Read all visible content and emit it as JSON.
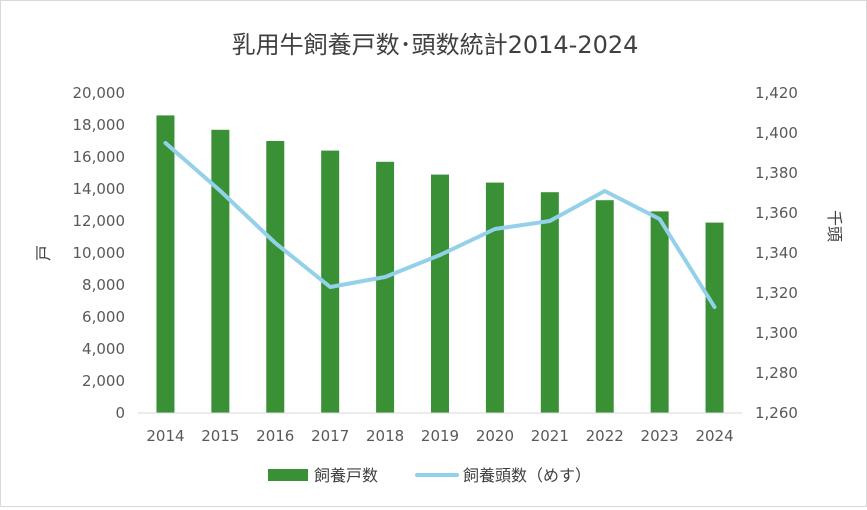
{
  "chart_data": {
    "type": "bar",
    "title": "乳用牛飼養戸数･頭数統計2014-2024",
    "categories": [
      "2014",
      "2015",
      "2016",
      "2017",
      "2018",
      "2019",
      "2020",
      "2021",
      "2022",
      "2023",
      "2024"
    ],
    "series": [
      {
        "name": "飼養戸数",
        "type": "bar",
        "axis": "left",
        "color": "#3a9034",
        "values": [
          18600,
          17700,
          17000,
          16400,
          15700,
          14900,
          14400,
          13800,
          13300,
          12600,
          11900
        ]
      },
      {
        "name": "飼養頭数（めす）",
        "type": "line",
        "axis": "right",
        "color": "#93d1ea",
        "values": [
          1395,
          1371,
          1345,
          1323,
          1328,
          1339,
          1352,
          1356,
          1371,
          1357,
          1313
        ]
      }
    ],
    "y_left": {
      "label": "戸",
      "ylim": [
        0,
        20000
      ],
      "ticks": [
        "0",
        "2,000",
        "4,000",
        "6,000",
        "8,000",
        "10,000",
        "12,000",
        "14,000",
        "16,000",
        "18,000",
        "20,000"
      ]
    },
    "y_right": {
      "label": "千頭",
      "ylim": [
        1260,
        1420
      ],
      "ticks": [
        "1,260",
        "1,280",
        "1,300",
        "1,320",
        "1,340",
        "1,360",
        "1,380",
        "1,400",
        "1,420"
      ]
    },
    "grid": false,
    "legend_position": "bottom"
  }
}
